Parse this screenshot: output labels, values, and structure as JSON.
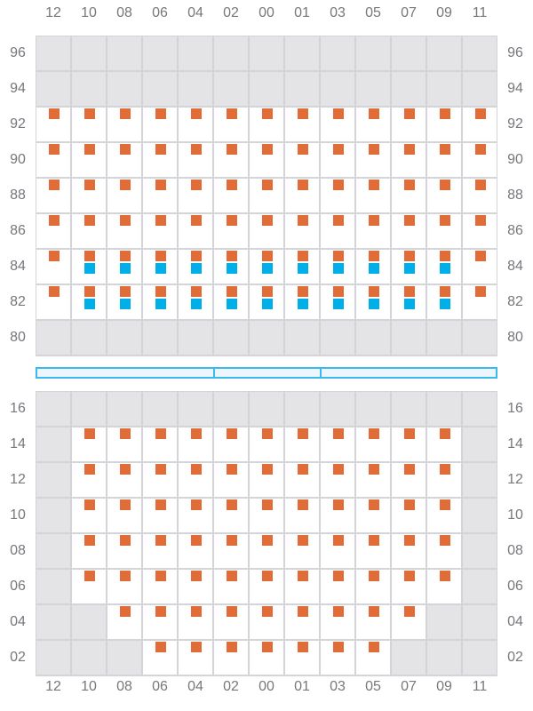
{
  "colors": {
    "container": "#e06c37",
    "secondary": "#00aee8",
    "unavailable": "#e4e4e7",
    "available": "#ffffff",
    "hatch": "#3bb8ee"
  },
  "legend_codes": {
    "x": "unavailable",
    "o": "container",
    "ob": "container + secondary container"
  },
  "columns": [
    "12",
    "10",
    "08",
    "06",
    "04",
    "02",
    "00",
    "01",
    "03",
    "05",
    "07",
    "09",
    "11"
  ],
  "deck": {
    "rows": [
      {
        "label": "96",
        "cells": [
          "x",
          "x",
          "x",
          "x",
          "x",
          "x",
          "x",
          "x",
          "x",
          "x",
          "x",
          "x",
          "x"
        ]
      },
      {
        "label": "94",
        "cells": [
          "x",
          "x",
          "x",
          "x",
          "x",
          "x",
          "x",
          "x",
          "x",
          "x",
          "x",
          "x",
          "x"
        ]
      },
      {
        "label": "92",
        "cells": [
          "o",
          "o",
          "o",
          "o",
          "o",
          "o",
          "o",
          "o",
          "o",
          "o",
          "o",
          "o",
          "o"
        ]
      },
      {
        "label": "90",
        "cells": [
          "o",
          "o",
          "o",
          "o",
          "o",
          "o",
          "o",
          "o",
          "o",
          "o",
          "o",
          "o",
          "o"
        ]
      },
      {
        "label": "88",
        "cells": [
          "o",
          "o",
          "o",
          "o",
          "o",
          "o",
          "o",
          "o",
          "o",
          "o",
          "o",
          "o",
          "o"
        ]
      },
      {
        "label": "86",
        "cells": [
          "o",
          "o",
          "o",
          "o",
          "o",
          "o",
          "o",
          "o",
          "o",
          "o",
          "o",
          "o",
          "o"
        ]
      },
      {
        "label": "84",
        "cells": [
          "o",
          "ob",
          "ob",
          "ob",
          "ob",
          "ob",
          "ob",
          "ob",
          "ob",
          "ob",
          "ob",
          "ob",
          "o"
        ]
      },
      {
        "label": "82",
        "cells": [
          "o",
          "ob",
          "ob",
          "ob",
          "ob",
          "ob",
          "ob",
          "ob",
          "ob",
          "ob",
          "ob",
          "ob",
          "o"
        ]
      },
      {
        "label": "80",
        "cells": [
          "x",
          "x",
          "x",
          "x",
          "x",
          "x",
          "x",
          "x",
          "x",
          "x",
          "x",
          "x",
          "x"
        ]
      }
    ]
  },
  "hatch_covers": 3,
  "hold": {
    "rows": [
      {
        "label": "16",
        "cells": [
          "x",
          "x",
          "x",
          "x",
          "x",
          "x",
          "x",
          "x",
          "x",
          "x",
          "x",
          "x",
          "x"
        ]
      },
      {
        "label": "14",
        "cells": [
          "x",
          "o",
          "o",
          "o",
          "o",
          "o",
          "o",
          "o",
          "o",
          "o",
          "o",
          "o",
          "x"
        ]
      },
      {
        "label": "12",
        "cells": [
          "x",
          "o",
          "o",
          "o",
          "o",
          "o",
          "o",
          "o",
          "o",
          "o",
          "o",
          "o",
          "x"
        ]
      },
      {
        "label": "10",
        "cells": [
          "x",
          "o",
          "o",
          "o",
          "o",
          "o",
          "o",
          "o",
          "o",
          "o",
          "o",
          "o",
          "x"
        ]
      },
      {
        "label": "08",
        "cells": [
          "x",
          "o",
          "o",
          "o",
          "o",
          "o",
          "o",
          "o",
          "o",
          "o",
          "o",
          "o",
          "x"
        ]
      },
      {
        "label": "06",
        "cells": [
          "x",
          "o",
          "o",
          "o",
          "o",
          "o",
          "o",
          "o",
          "o",
          "o",
          "o",
          "o",
          "x"
        ]
      },
      {
        "label": "04",
        "cells": [
          "x",
          "x",
          "o",
          "o",
          "o",
          "o",
          "o",
          "o",
          "o",
          "o",
          "o",
          "x",
          "x"
        ]
      },
      {
        "label": "02",
        "cells": [
          "x",
          "x",
          "x",
          "o",
          "o",
          "o",
          "o",
          "o",
          "o",
          "o",
          "x",
          "x",
          "x"
        ]
      }
    ]
  }
}
